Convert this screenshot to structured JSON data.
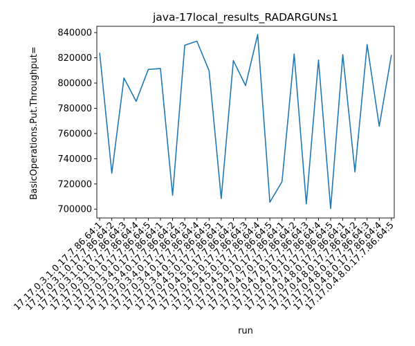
{
  "chart_data": {
    "type": "line",
    "title": "java-17local_results_RADARGUNs1",
    "xlabel": "run",
    "ylabel": "BasicOperations.Put.Throughput=",
    "ylim": [
      693000,
      845000
    ],
    "yticks": [
      700000,
      720000,
      740000,
      760000,
      780000,
      800000,
      820000,
      840000
    ],
    "grid": false,
    "legend": "none",
    "line_color": "#1f77b4",
    "categories": [
      "17.17.0.3.1.0.17.7.86.64:1",
      "17.17.0.3.1.0.17.7.86.64:2",
      "17.17.0.3.1.0.17.7.86.64:3",
      "17.17.0.3.1.0.17.7.86.64:4",
      "17.17.0.3.1.0.17.7.86.64:5",
      "17.17.0.3.4.0.17.7.86.64:1",
      "17.17.0.3.4.0.17.7.86.64:2",
      "17.17.0.3.4.0.17.7.86.64:3",
      "17.17.0.3.4.0.17.7.86.64:4",
      "17.17.0.3.4.0.17.7.86.64:5",
      "17.17.0.4.5.0.17.7.86.64:1",
      "17.17.0.4.5.0.17.7.86.64:2",
      "17.17.0.4.5.0.17.7.86.64:3",
      "17.17.0.4.5.0.17.7.86.64:4",
      "17.17.0.4.5.0.17.7.86.64:5",
      "17.17.0.4.7.0.17.7.86.64:1",
      "17.17.0.4.7.0.17.7.86.64:2",
      "17.17.0.4.7.0.17.7.86.64:3",
      "17.17.0.4.7.0.17.7.86.64:4",
      "17.17.0.4.7.0.17.7.86.64:5",
      "17.17.0.4.8.0.17.7.86.64:1",
      "17.17.0.4.8.0.17.7.86.64:2",
      "17.17.0.4.8.0.17.7.86.64:3",
      "17.17.0.4.8.0.17.7.86.64:4",
      "17.17.0.4.8.0.17.7.86.64:5"
    ],
    "series": [
      {
        "values": [
          824000,
          728500,
          804000,
          785500,
          810800,
          811500,
          711000,
          830000,
          833200,
          809800,
          708500,
          817800,
          798000,
          838500,
          705500,
          721800,
          823000,
          704200,
          818200,
          700500,
          822500,
          729500,
          830500,
          765800,
          822300
        ]
      }
    ]
  }
}
